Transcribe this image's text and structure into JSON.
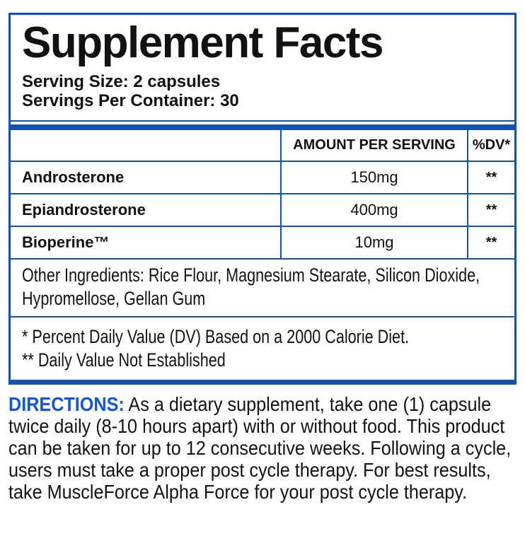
{
  "colors": {
    "border_blue": "#1252b4",
    "directions_blue": "#1656cd",
    "text": "#121212",
    "background": "#ffffff"
  },
  "panel": {
    "title": "Supplement Facts",
    "serving_size": "Serving Size: 2 capsules",
    "servings_per_container": "Servings Per Container: 30",
    "table": {
      "amount_header": "AMOUNT PER SERVING",
      "dv_header": "%DV*",
      "rows": [
        {
          "name": "Androsterone",
          "amount": "150mg",
          "dv": "**"
        },
        {
          "name": "Epiandrosterone",
          "amount": "400mg",
          "dv": "**"
        },
        {
          "name": "Bioperine™",
          "amount": "10mg",
          "dv": "**"
        }
      ]
    },
    "other_ingredients": "Other Ingredients: Rice Flour, Magnesium Stearate, Silicon Dioxide, Hypromellose, Gellan Gum",
    "footnotes": [
      "* Percent Daily Value (DV) Based on a 2000 Calorie Diet.",
      "** Daily Value Not Established"
    ]
  },
  "directions": {
    "heading": "DIRECTIONS:",
    "body": "As a dietary supplement, take one (1) capsule twice daily (8-10 hours apart) with or without food. This product can be taken for up to 12 consecutive weeks. Following a cycle, users must take a proper post cycle therapy. For best results, take MuscleForce Alpha Force for your post cycle therapy."
  }
}
